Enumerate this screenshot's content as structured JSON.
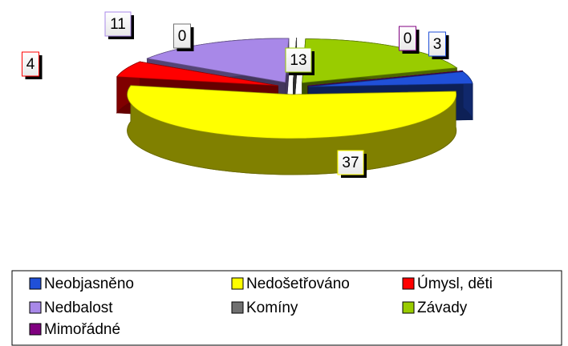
{
  "chart_data": {
    "type": "pie",
    "categories": [
      "Neobjasněno",
      "Nedošetřováno",
      "Úmysl, děti",
      "Nedbalost",
      "Komíny",
      "Závady",
      "Mimořádné"
    ],
    "values": [
      3,
      37,
      4,
      11,
      0,
      13,
      0
    ],
    "colors": [
      "#2050d8",
      "#ffff00",
      "#ff0000",
      "#a888e8",
      "#707070",
      "#99cc00",
      "#800080"
    ],
    "legend": "bottom"
  }
}
